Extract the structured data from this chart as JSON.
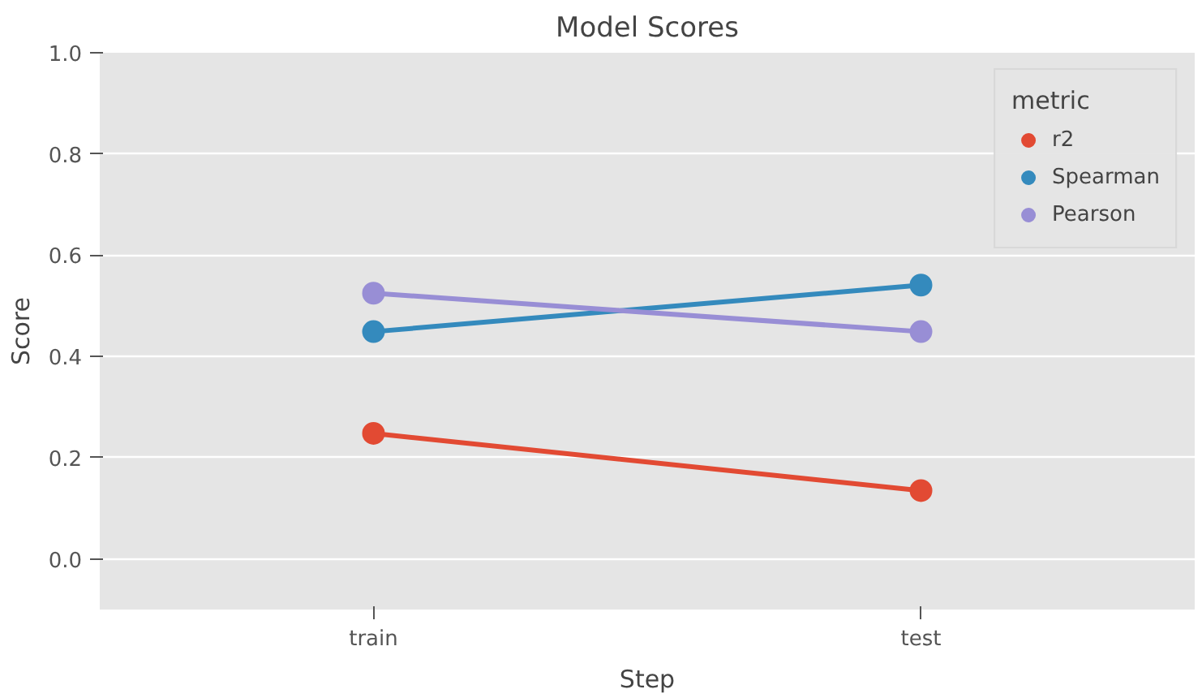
{
  "chart_data": {
    "type": "line",
    "title": "Model Scores",
    "xlabel": "Step",
    "ylabel": "Score",
    "legend_title": "metric",
    "categories": [
      "train",
      "test"
    ],
    "series": [
      {
        "name": "r2",
        "color": "#e24a33",
        "values": [
          0.248,
          0.135
        ]
      },
      {
        "name": "Spearman",
        "color": "#348abd",
        "values": [
          0.449,
          0.541
        ]
      },
      {
        "name": "Pearson",
        "color": "#988ed5",
        "values": [
          0.525,
          0.449
        ]
      }
    ],
    "ylim": [
      -0.1,
      1.0
    ],
    "yticks": [
      {
        "value": 0,
        "label": "0.0"
      },
      0.2,
      0.4,
      0.6,
      0.8,
      {
        "value": 1,
        "label": "1.0"
      }
    ],
    "grid": "y",
    "legend": "top right",
    "marker": "circle",
    "line_style": "solid"
  }
}
